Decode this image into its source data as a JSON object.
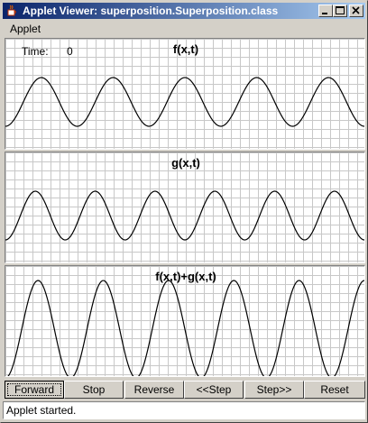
{
  "window": {
    "title": "Applet Viewer: superposition.Superposition.class",
    "icons": {
      "app": "java-cup-icon",
      "minimize": "minimize-icon",
      "maximize": "maximize-icon",
      "close": "close-icon"
    }
  },
  "menubar": {
    "items": [
      {
        "label": "Applet"
      }
    ]
  },
  "time": {
    "label": "Time:",
    "value": "0"
  },
  "panels": [
    {
      "title": "f(x,t)",
      "cycles": 5,
      "amplitude": 0.5
    },
    {
      "title": "g(x,t)",
      "cycles": 6,
      "amplitude": 0.5
    },
    {
      "title": "f(x,t)+g(x,t)",
      "cycles": 5.5,
      "amplitude": 1.0
    }
  ],
  "buttons": [
    {
      "label": "Forward"
    },
    {
      "label": "Stop"
    },
    {
      "label": "Reverse"
    },
    {
      "label": "<<Step"
    },
    {
      "label": "Step>>"
    },
    {
      "label": "Reset"
    }
  ],
  "status": {
    "text": "Applet started."
  },
  "colors": {
    "grid": "#c8c8c8",
    "curve": "#000000",
    "title_gradient_start": "#0a246a",
    "title_gradient_end": "#a6caf0"
  }
}
